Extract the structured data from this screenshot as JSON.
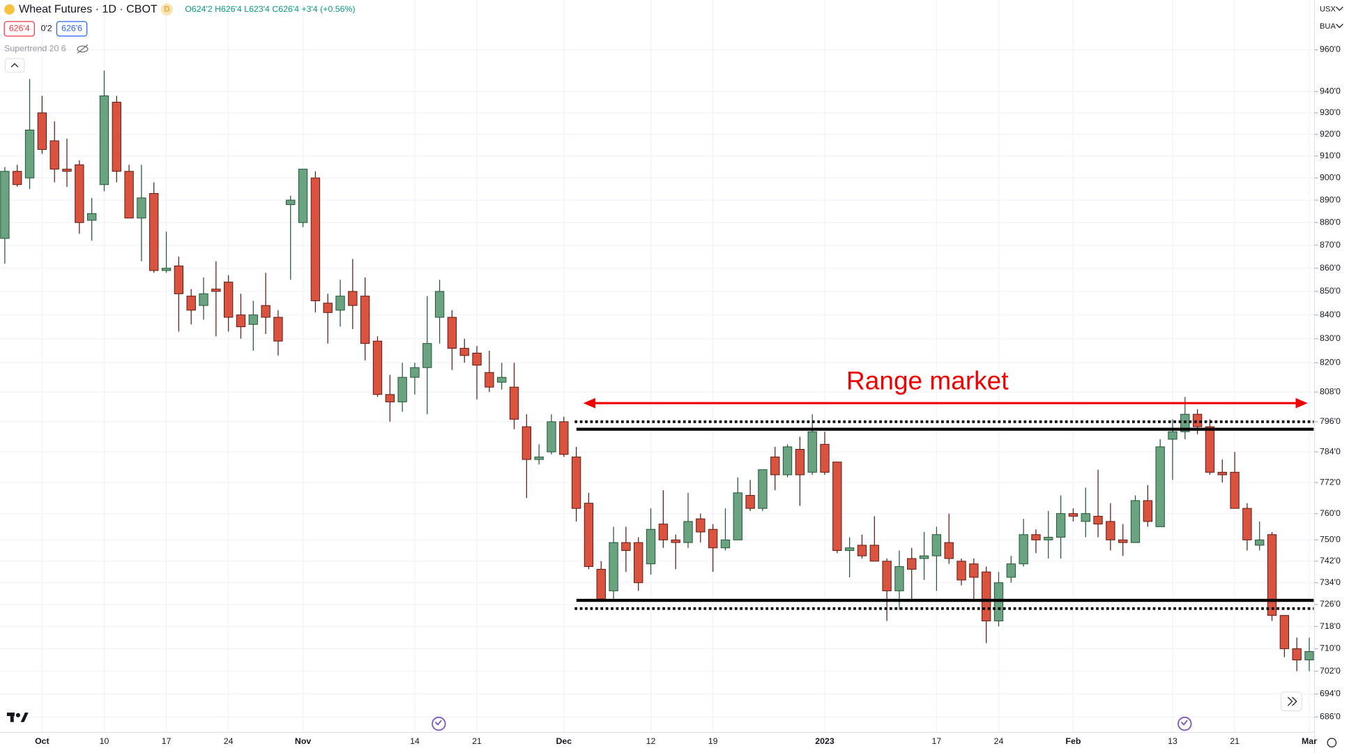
{
  "header": {
    "symbol": "Wheat Futures · 1D · CBOT",
    "badge": "D",
    "ohlc": "O624'2 H626'4 L623'4 C626'4 +3'4 (+0.56%)",
    "bid": "626'4",
    "spread": "0'2",
    "ask": "626'6",
    "indicator": "Supertrend 20 6",
    "currency": "USX",
    "unit": "BUA"
  },
  "chart_data": {
    "type": "candlestick",
    "log_scale": true,
    "grid": true,
    "up_color": "#6aa37f",
    "down_color": "#d9533f",
    "annotation": "Range market",
    "levels": [
      {
        "value": 796,
        "style": "dotted"
      },
      {
        "value": 793,
        "style": "solid"
      },
      {
        "value": 727.5,
        "style": "solid"
      },
      {
        "value": 724.5,
        "style": "dotted"
      }
    ],
    "categories": [
      null,
      null,
      null,
      "Oct",
      null,
      null,
      null,
      null,
      "10",
      null,
      null,
      null,
      null,
      "17",
      null,
      null,
      null,
      null,
      "24",
      null,
      null,
      null,
      null,
      null,
      "Nov",
      null,
      null,
      null,
      null,
      null,
      null,
      null,
      null,
      "14",
      null,
      null,
      null,
      null,
      "21",
      null,
      null,
      null,
      null,
      null,
      null,
      "Dec",
      null,
      null,
      null,
      null,
      null,
      null,
      "12",
      null,
      null,
      null,
      null,
      "19",
      null,
      null,
      null,
      null,
      null,
      null,
      null,
      null,
      "2023",
      null,
      null,
      null,
      null,
      null,
      null,
      null,
      null,
      "17",
      null,
      null,
      null,
      null,
      "24",
      null,
      null,
      null,
      null,
      null,
      "Feb",
      null,
      null,
      null,
      null,
      null,
      null,
      null,
      "13",
      null,
      null,
      null,
      null,
      "21",
      null,
      null,
      null,
      null,
      null,
      "Mar"
    ],
    "open": [
      873,
      903,
      900,
      930,
      917,
      904,
      906,
      881,
      897,
      935,
      903,
      882,
      893,
      859,
      861,
      848,
      844,
      851,
      854,
      840,
      836,
      844,
      839,
      888,
      880,
      900,
      845,
      842,
      850,
      848,
      829,
      807,
      804,
      814,
      818,
      839,
      839,
      826,
      824,
      816,
      812,
      810,
      794,
      781,
      784,
      796,
      782,
      764,
      739,
      731,
      749,
      749,
      741,
      756,
      750,
      749,
      758,
      754,
      747,
      750,
      767,
      762,
      782,
      775,
      785,
      776,
      787,
      780,
      746,
      748,
      748,
      742,
      731,
      743,
      743,
      744,
      749,
      742,
      741,
      738,
      720,
      736,
      741,
      752,
      750,
      751,
      760,
      757,
      759,
      757,
      750,
      749,
      765,
      755,
      789,
      792,
      799,
      794,
      776,
      776,
      762,
      748,
      752,
      722,
      710,
      706
    ],
    "high": [
      905,
      906,
      946,
      938,
      926,
      918,
      908,
      891,
      950,
      938,
      906,
      906,
      898,
      876,
      865,
      851,
      856,
      863,
      857,
      849,
      846,
      858,
      842,
      892,
      904,
      903,
      849,
      855,
      864,
      856,
      831,
      815,
      820,
      820,
      848,
      855,
      842,
      830,
      827,
      825,
      820,
      820,
      799,
      787,
      799,
      798,
      786,
      768,
      742,
      755,
      755,
      751,
      762,
      769,
      752,
      768,
      760,
      756,
      762,
      774,
      773,
      777,
      786,
      787,
      790,
      799,
      792,
      780,
      751,
      752,
      759,
      743,
      746,
      747,
      753,
      755,
      760,
      743,
      743,
      740,
      738,
      744,
      758,
      754,
      761,
      767,
      762,
      770,
      777,
      764,
      756,
      767,
      771,
      789,
      797,
      806,
      801,
      797,
      781,
      784,
      764,
      757,
      753,
      722,
      714,
      714
    ],
    "low": [
      862,
      896,
      895,
      911,
      898,
      896,
      875,
      872,
      894,
      898,
      882,
      863,
      858,
      858,
      833,
      836,
      838,
      831,
      833,
      830,
      825,
      832,
      823,
      855,
      878,
      841,
      828,
      835,
      834,
      821,
      806,
      796,
      800,
      807,
      799,
      828,
      817,
      820,
      805,
      808,
      809,
      793,
      766,
      779,
      783,
      782,
      757,
      739,
      727,
      728,
      738,
      731,
      737,
      747,
      739,
      747,
      749,
      738,
      746,
      750,
      761,
      761,
      769,
      774,
      763,
      775,
      775,
      745,
      736,
      743,
      742,
      720,
      724,
      728,
      735,
      731,
      741,
      733,
      728,
      712,
      718,
      734,
      740,
      745,
      743,
      743,
      757,
      751,
      751,
      746,
      744,
      749,
      755,
      755,
      773,
      789,
      791,
      775,
      772,
      762,
      746,
      746,
      720,
      707,
      702,
      702
    ],
    "close": [
      903,
      897,
      922,
      913,
      904,
      903,
      880,
      884,
      938,
      903,
      882,
      891,
      859,
      860,
      849,
      842,
      849,
      850,
      839,
      835,
      840,
      839,
      829,
      890,
      904,
      846,
      841,
      848,
      844,
      828,
      807,
      804,
      814,
      818,
      828,
      850,
      826,
      823,
      819,
      810,
      814,
      797,
      781,
      782,
      796,
      783,
      762,
      740,
      728,
      749,
      746,
      734,
      754,
      750,
      749,
      757,
      753,
      747,
      750,
      768,
      762,
      777,
      775,
      786,
      775,
      792,
      776,
      746,
      747,
      744,
      742,
      731,
      740,
      739,
      744,
      752,
      743,
      735,
      736,
      720,
      734,
      741,
      752,
      750,
      751,
      760,
      759,
      760,
      756,
      750,
      749,
      765,
      757,
      786,
      792,
      799,
      794,
      776,
      775,
      762,
      750,
      750,
      722,
      710,
      706,
      709
    ],
    "ylim": [
      680.7,
      984.4
    ],
    "yticks": [
      {
        "value": 960,
        "label": "960'0"
      },
      {
        "value": 940,
        "label": "940'0"
      },
      {
        "value": 930,
        "label": "930'0"
      },
      {
        "value": 920,
        "label": "920'0"
      },
      {
        "value": 910,
        "label": "910'0"
      },
      {
        "value": 900,
        "label": "900'0"
      },
      {
        "value": 890,
        "label": "890'0"
      },
      {
        "value": 880,
        "label": "880'0"
      },
      {
        "value": 870,
        "label": "870'0"
      },
      {
        "value": 860,
        "label": "860'0"
      },
      {
        "value": 850,
        "label": "850'0"
      },
      {
        "value": 840,
        "label": "840'0"
      },
      {
        "value": 830,
        "label": "830'0"
      },
      {
        "value": 820,
        "label": "820'0"
      },
      {
        "value": 808,
        "label": "808'0"
      },
      {
        "value": 796,
        "label": "796'0"
      },
      {
        "value": 784,
        "label": "784'0"
      },
      {
        "value": 772,
        "label": "772'0"
      },
      {
        "value": 760,
        "label": "760'0"
      },
      {
        "value": 750,
        "label": "750'0"
      },
      {
        "value": 742,
        "label": "742'0"
      },
      {
        "value": 734,
        "label": "734'0"
      },
      {
        "value": 726,
        "label": "726'0"
      },
      {
        "value": 718,
        "label": "718'0"
      },
      {
        "value": 710,
        "label": "710'0"
      },
      {
        "value": 702,
        "label": "702'0"
      },
      {
        "value": 694,
        "label": "694'0"
      },
      {
        "value": 686,
        "label": "686'0"
      }
    ]
  }
}
